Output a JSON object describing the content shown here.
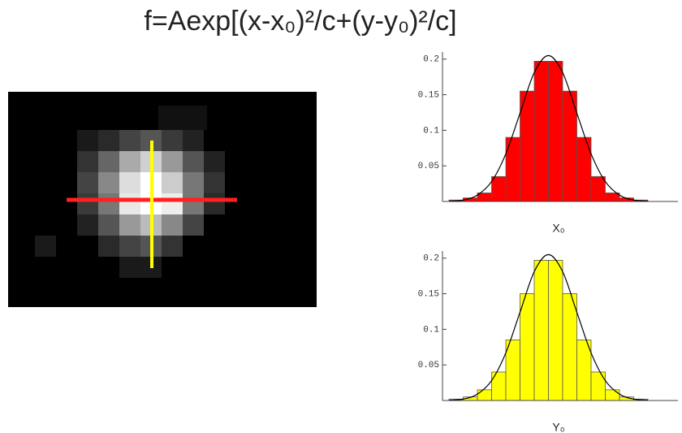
{
  "title": "f=Aexp[(x-x₀)²/c+(y-y₀)²/c]",
  "chart_data": [
    {
      "type": "histogram",
      "xlabel": "X₀",
      "categories": [
        null,
        null,
        null,
        null,
        null,
        null,
        null,
        null,
        null,
        null,
        null,
        null,
        null,
        null
      ],
      "values": [
        0.002,
        0.005,
        0.012,
        0.035,
        0.09,
        0.155,
        0.197,
        0.197,
        0.155,
        0.09,
        0.035,
        0.012,
        0.005,
        0.002
      ],
      "color": "#ff0000",
      "fit": {
        "color": "#000000",
        "values": [
          0.0005,
          0.002,
          0.009,
          0.028,
          0.067,
          0.124,
          0.181,
          0.205,
          0.181,
          0.124,
          0.067,
          0.028,
          0.009,
          0.002,
          0.0005
        ]
      },
      "ylim": [
        0,
        0.21
      ],
      "yticks": [
        0.05,
        0.1,
        0.15,
        0.2
      ]
    },
    {
      "type": "histogram",
      "xlabel": "Y₀",
      "categories": [
        null,
        null,
        null,
        null,
        null,
        null,
        null,
        null,
        null,
        null,
        null,
        null,
        null,
        null
      ],
      "values": [
        0.002,
        0.005,
        0.015,
        0.04,
        0.085,
        0.15,
        0.197,
        0.197,
        0.15,
        0.085,
        0.04,
        0.015,
        0.005,
        0.002
      ],
      "color": "#ffff00",
      "fit": {
        "color": "#000000",
        "values": [
          0.0005,
          0.002,
          0.009,
          0.028,
          0.067,
          0.124,
          0.181,
          0.205,
          0.181,
          0.124,
          0.067,
          0.028,
          0.009,
          0.002,
          0.0005
        ]
      },
      "ylim": [
        0,
        0.21
      ],
      "yticks": [
        0.05,
        0.1,
        0.15,
        0.2
      ]
    }
  ]
}
